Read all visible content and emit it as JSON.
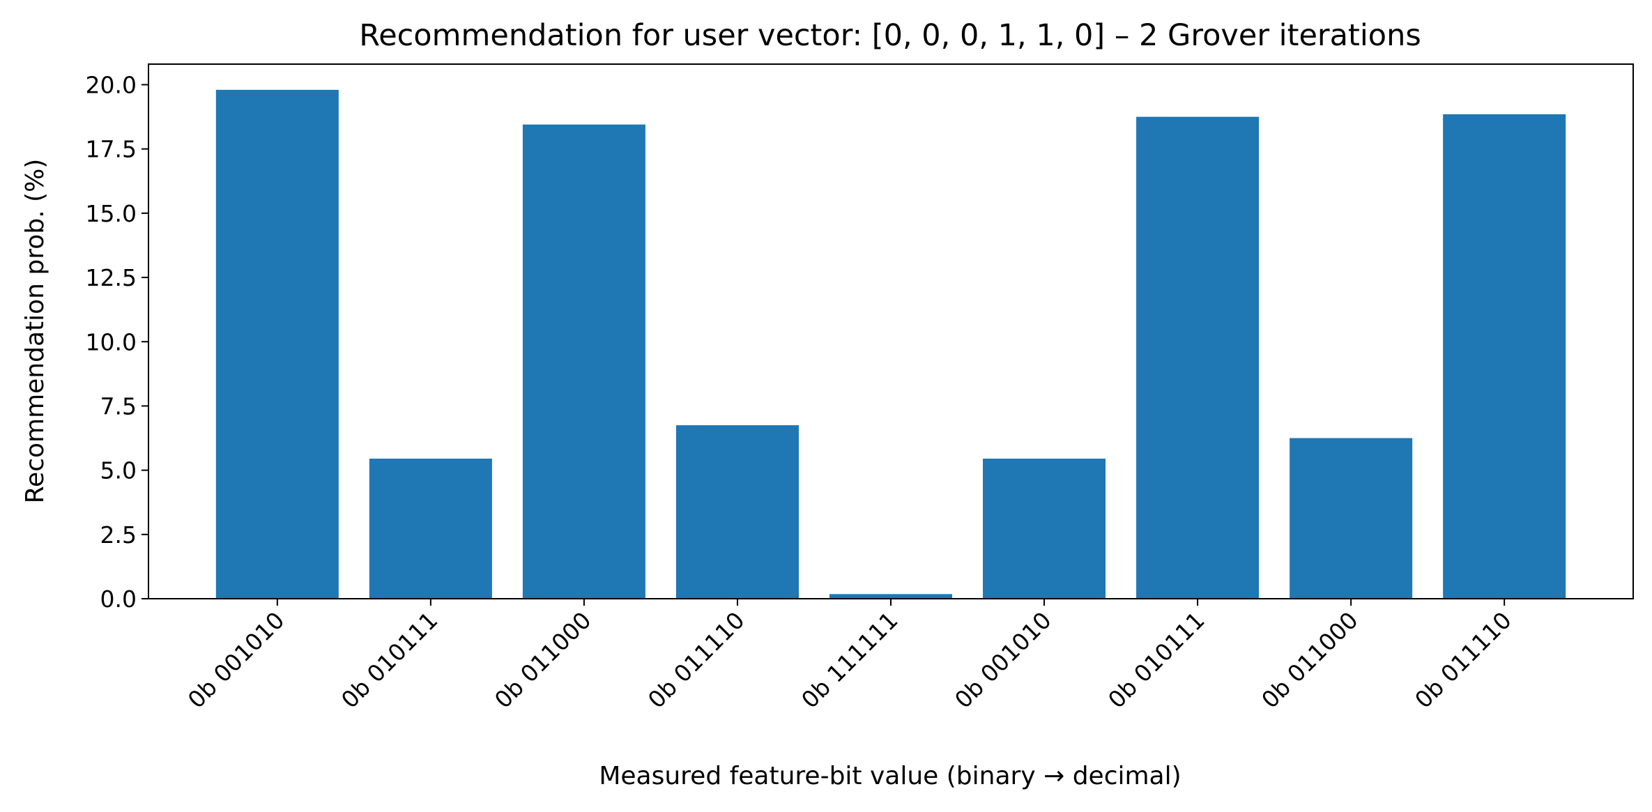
{
  "chart_data": {
    "type": "bar",
    "title": "Recommendation for user vector: [0, 0, 0, 1, 1, 0]  –  2 Grover iterations",
    "xlabel": "Measured feature-bit value (binary → decimal)",
    "ylabel": "Recommendation prob. (%)",
    "categories": [
      "0b 001010",
      "0b 010111",
      "0b 011000",
      "0b 011110",
      "0b 111111",
      "0b 001010",
      "0b 010111",
      "0b 011000",
      "0b 011110"
    ],
    "values": [
      19.8,
      5.45,
      18.45,
      6.75,
      0.18,
      5.45,
      18.75,
      6.25,
      18.85
    ],
    "ylim": [
      0,
      20.8
    ],
    "yticks": [
      0.0,
      2.5,
      5.0,
      7.5,
      10.0,
      12.5,
      15.0,
      17.5,
      20.0
    ],
    "ytick_labels": [
      "0.0",
      "2.5",
      "5.0",
      "7.5",
      "10.0",
      "12.5",
      "15.0",
      "17.5",
      "20.0"
    ],
    "bar_color": "#1f77b4",
    "grid": false,
    "legend": "none"
  }
}
